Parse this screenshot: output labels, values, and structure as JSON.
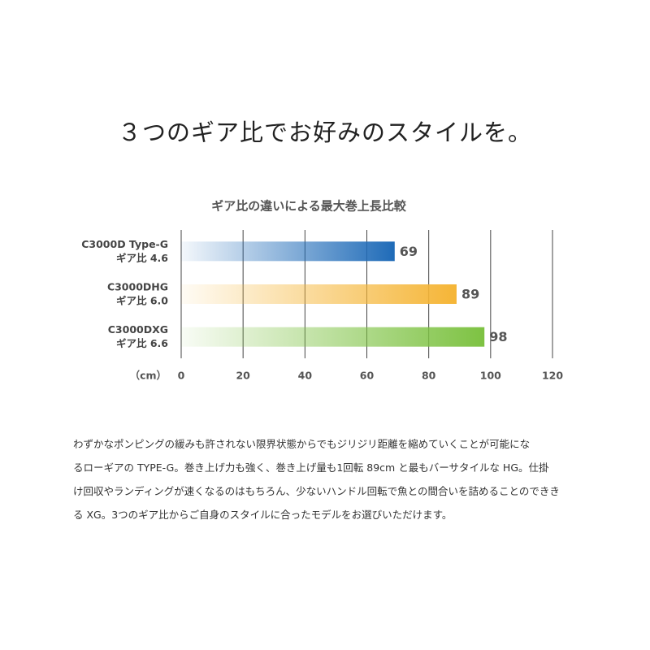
{
  "headline": "３つのギア比でお好みのスタイルを。",
  "chart_data": {
    "type": "bar",
    "orientation": "horizontal",
    "title": "ギア比の違いによる最大巻上長比較",
    "categories": [
      [
        "C3000D Type-G",
        "ギア比 4.6"
      ],
      [
        "C3000DHG",
        "ギア比 6.0"
      ],
      [
        "C3000DXG",
        "ギア比 6.6"
      ]
    ],
    "values": [
      69,
      89,
      98
    ],
    "colors": [
      "#1f6bb8",
      "#f5b536",
      "#7dc242"
    ],
    "x_unit": "（cm）",
    "xlim": [
      0,
      120
    ],
    "xticks": [
      0,
      20,
      40,
      60,
      80,
      100,
      120
    ],
    "grid": true
  },
  "body": [
    "わずかなポンピングの緩みも許されない限界状態からでもジリジリ距離を縮めていくことが可能にな",
    "るローギアの TYPE-G。巻き上げ力も強く、巻き上げ量も1回転 89cm と最もバーサタイルな HG。仕掛",
    "け回収やランディングが速くなるのはもちろん、少ないハンドル回転で魚との間合いを詰めることのできき",
    "る XG。3つのギア比からご自身のスタイルに合ったモデルをお選びいただけます。"
  ]
}
